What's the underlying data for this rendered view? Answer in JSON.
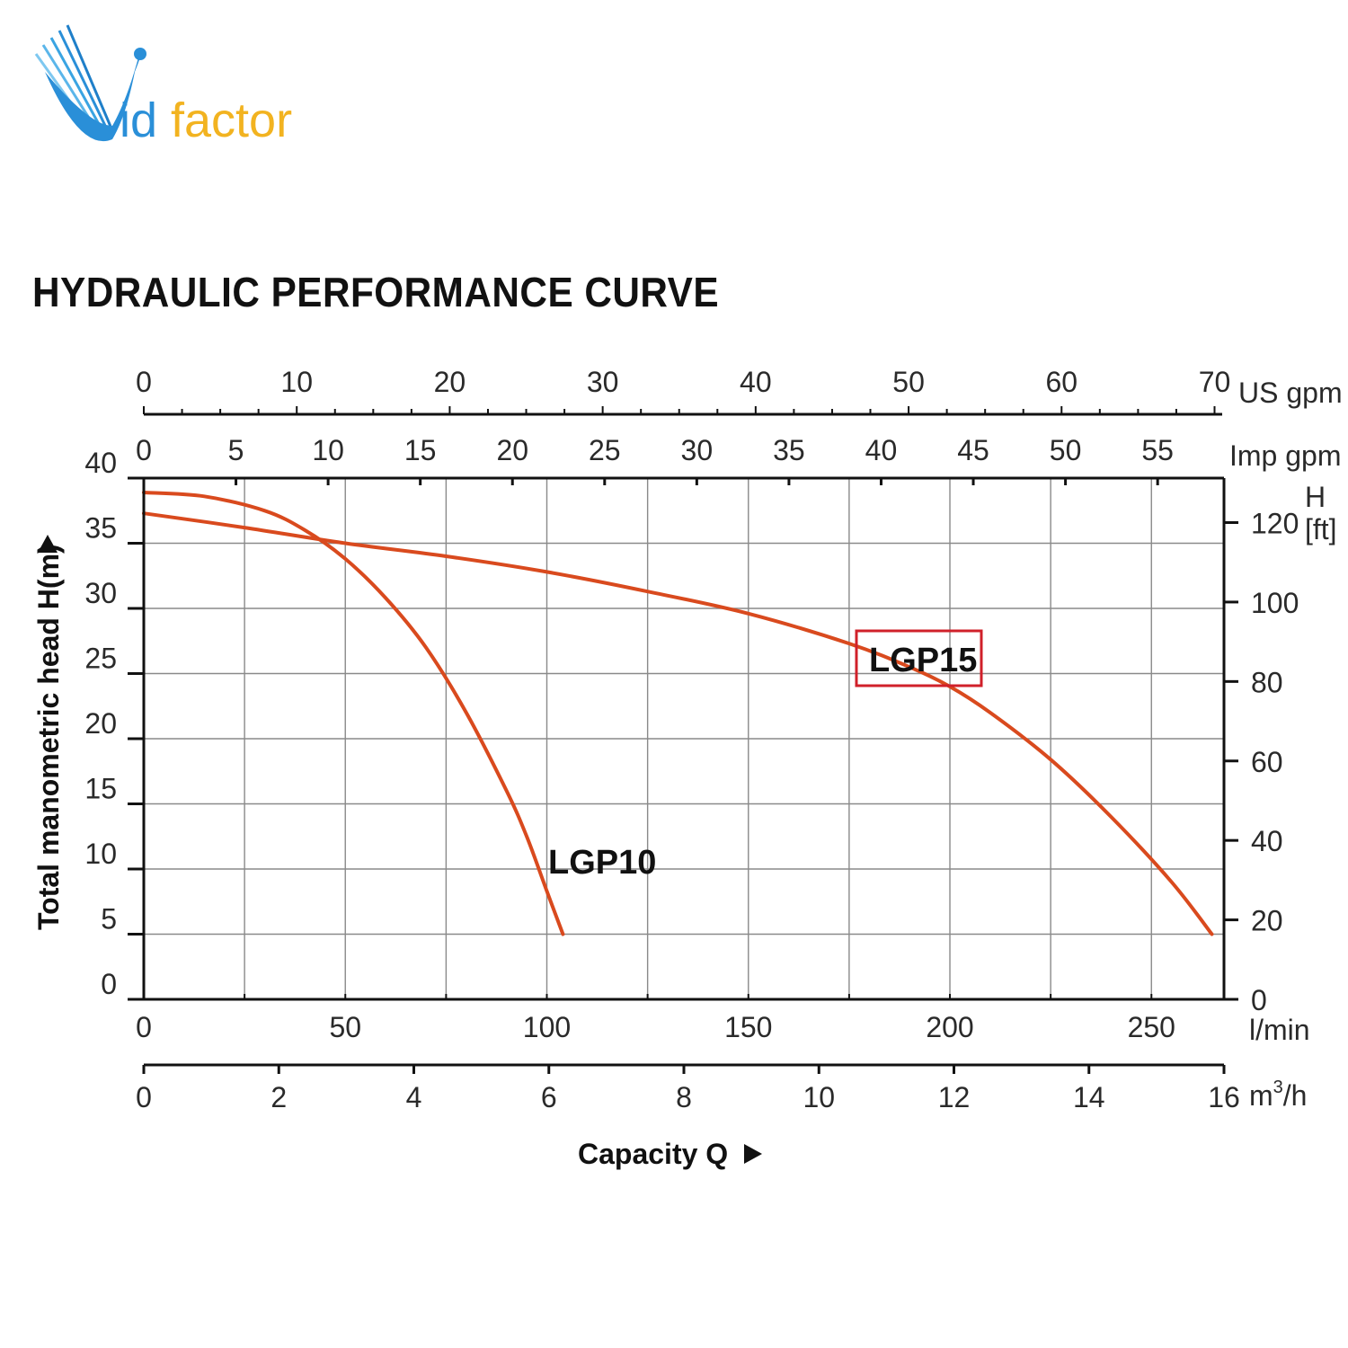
{
  "brand": {
    "logo_text_v": "V",
    "logo_text_id": "id",
    "logo_text_factor": "factor"
  },
  "header": {
    "title": "HYDRAULIC PERFORMANCE CURVE"
  },
  "colors": {
    "curve": "#d94a1e",
    "grid": "#8a8a8a",
    "axis": "#111111",
    "highlight_box": "#d0202a",
    "logo_blue": "#2a8fd8",
    "logo_gold": "#f2b320"
  },
  "chart_data": {
    "type": "line",
    "title": "HYDRAULIC PERFORMANCE CURVE",
    "xlabel": "Capacity Q",
    "ylabel": "Total manometric head H(m)",
    "grid": true,
    "x_primary": {
      "unit": "l/min",
      "min": 0,
      "max": 268,
      "ticks": [
        0,
        50,
        100,
        150,
        200,
        250
      ]
    },
    "x_m3h": {
      "unit": "m³/h",
      "unit_base": "m",
      "unit_sup": "3",
      "unit_tail": "/h",
      "min": 0,
      "max": 16,
      "ticks": [
        0,
        2,
        4,
        6,
        8,
        10,
        12,
        14,
        16
      ]
    },
    "x_impgpm": {
      "unit": "Imp gpm",
      "min": 0,
      "max": 58.6,
      "ticks": [
        0,
        5,
        10,
        15,
        20,
        25,
        30,
        35,
        40,
        45,
        50,
        55
      ]
    },
    "x_usgpm": {
      "unit": "US gpm",
      "min": 0,
      "max": 70.5,
      "ticks": [
        0,
        10,
        20,
        30,
        40,
        50,
        60,
        70
      ]
    },
    "y_primary": {
      "unit": "H(m)",
      "min": 0,
      "max": 40,
      "ticks": [
        0,
        5,
        10,
        15,
        20,
        25,
        30,
        35,
        40
      ]
    },
    "y_feet": {
      "unit": "H [ft]",
      "unit_h": "H",
      "unit_ft": "[ft]",
      "min": 0,
      "max": 131.2,
      "ticks": [
        0,
        20,
        40,
        60,
        80,
        100,
        120
      ]
    },
    "series": [
      {
        "name": "LGP10",
        "x": [
          0,
          15,
          30,
          40,
          50,
          60,
          70,
          80,
          90,
          95,
          100,
          104
        ],
        "y": [
          38.9,
          38.6,
          37.5,
          36.0,
          33.8,
          30.8,
          27.0,
          22.0,
          16.0,
          12.5,
          8.3,
          5.0
        ]
      },
      {
        "name": "LGP15",
        "x": [
          0,
          25,
          50,
          75,
          100,
          125,
          150,
          175,
          190,
          200,
          210,
          225,
          240,
          255,
          265
        ],
        "y": [
          37.3,
          36.2,
          35.0,
          34.0,
          32.8,
          31.3,
          29.6,
          27.3,
          25.5,
          24.0,
          22.0,
          18.4,
          14.0,
          9.0,
          5.0
        ]
      }
    ],
    "annotations": [
      {
        "text": "LGP15",
        "series": "LGP15",
        "highlighted": true
      },
      {
        "text": "LGP10",
        "series": "LGP10",
        "highlighted": false
      }
    ]
  }
}
